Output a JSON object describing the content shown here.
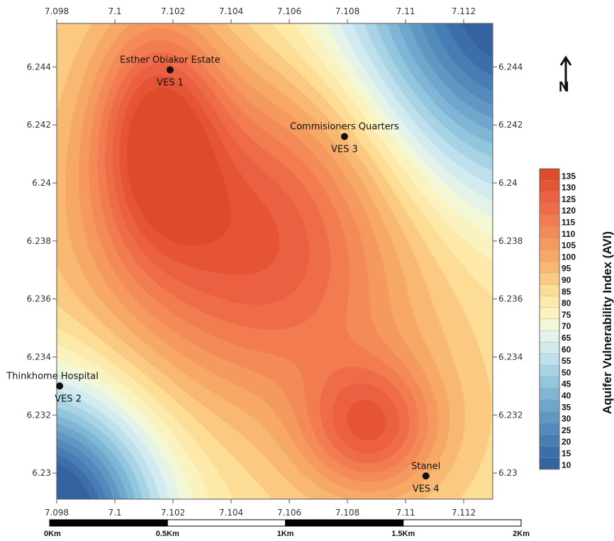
{
  "map": {
    "x_ticks": [
      "7.098",
      "7.1",
      "7.102",
      "7.104",
      "7.106",
      "7.108",
      "7.11",
      "7.112"
    ],
    "y_ticks": [
      "6.244",
      "6.242",
      "6.24",
      "6.238",
      "6.236",
      "6.234",
      "6.232",
      "6.23"
    ],
    "x_range": [
      7.098,
      7.113
    ],
    "y_range": [
      6.2291,
      6.2455
    ],
    "sites": [
      {
        "name": "Esther Obiakor Estate",
        "ves": "VES 1",
        "lon": 7.1019,
        "lat": 6.2439
      },
      {
        "name": "Thinkhome Hospital",
        "ves": "VES 2",
        "lon": 7.0981,
        "lat": 6.233
      },
      {
        "name": "Commisioners Quarters",
        "ves": "VES 3",
        "lon": 7.1079,
        "lat": 6.2416
      },
      {
        "name": "Stanel",
        "ves": "VES 4",
        "lon": 7.1107,
        "lat": 6.2299
      }
    ],
    "north_symbol": "N",
    "north_icon": "north-arrow-icon"
  },
  "legend": {
    "title": "Aquifer Vulnerability Index (AVI)",
    "labels": [
      "135",
      "130",
      "125",
      "120",
      "115",
      "110",
      "105",
      "100",
      "95",
      "90",
      "85",
      "80",
      "75",
      "70",
      "65",
      "60",
      "55",
      "50",
      "45",
      "40",
      "35",
      "30",
      "25",
      "20",
      "15",
      "10"
    ],
    "colors": [
      "#de4b2b",
      "#e55434",
      "#ea6040",
      "#ee6d48",
      "#f27c50",
      "#f38a57",
      "#f5995f",
      "#f7a865",
      "#f9b872",
      "#fbc982",
      "#fddc95",
      "#fdeaaa",
      "#fbf3bf",
      "#f2f7d6",
      "#e4f3ea",
      "#d2ebf1",
      "#bde0ec",
      "#a8d3e5",
      "#92c5de",
      "#7fb6d6",
      "#6fa6cc",
      "#6198c3",
      "#528abb",
      "#467db4",
      "#3c6faa",
      "#3563a1"
    ]
  },
  "scalebar": {
    "labels": [
      "0Km",
      "0.5Km",
      "1Km",
      "1.5Km",
      "2Km"
    ]
  }
}
